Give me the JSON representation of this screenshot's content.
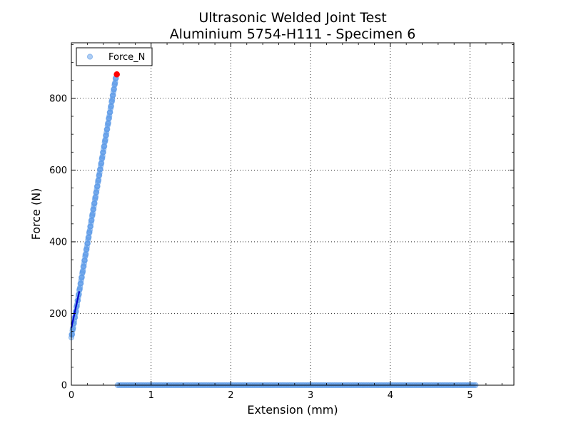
{
  "chart_data": {
    "type": "scatter",
    "title": [
      "Ultrasonic Welded Joint Test",
      "Aluminium 5754-H111 - Specimen 6"
    ],
    "xlabel": "Extension (mm)",
    "ylabel": "Force (N)",
    "xlim": [
      0,
      5.55
    ],
    "ylim": [
      0,
      955
    ],
    "xticks": [
      0,
      1,
      2,
      3,
      4,
      5
    ],
    "yticks": [
      0,
      200,
      400,
      600,
      800
    ],
    "grid": true,
    "legend_position": "top-left",
    "legend": [
      "Force_N"
    ],
    "series": [
      {
        "name": "Force_N",
        "marker_color": "#5d9be8",
        "rising_segment": {
          "x_start": 0.0,
          "y_start": 133,
          "x_end": 0.56,
          "y_end": 860,
          "approx_points": 170
        },
        "plateau_segment": {
          "x_start": 0.58,
          "x_end": 5.07,
          "y": 0,
          "approx_points": 200
        }
      }
    ],
    "fit_line": {
      "x": [
        0.0,
        0.1
      ],
      "y": [
        160,
        262
      ],
      "color": "#0000cc"
    },
    "max_point": {
      "x": 0.57,
      "y": 867,
      "color": "#ff0000"
    }
  }
}
